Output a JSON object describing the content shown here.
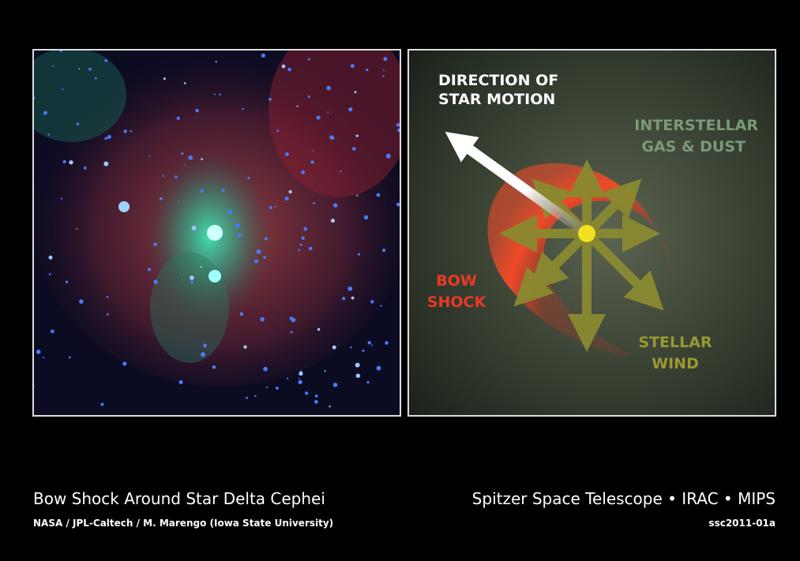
{
  "diagram": {
    "motion_label": [
      "DIRECTION OF",
      "STAR MOTION"
    ],
    "medium_label": [
      "INTERSTELLAR",
      "GAS & DUST"
    ],
    "shock_label": [
      "BOW",
      "SHOCK"
    ],
    "wind_label": [
      "STELLAR",
      "WIND"
    ]
  },
  "caption": {
    "title": "Bow Shock Around Star Delta Cephei",
    "credit": "NASA / JPL-Caltech / M. Marengo (Iowa State University)",
    "instruments": "Spitzer Space Telescope • IRAC • MIPS",
    "id": "ssc2011-01a"
  }
}
